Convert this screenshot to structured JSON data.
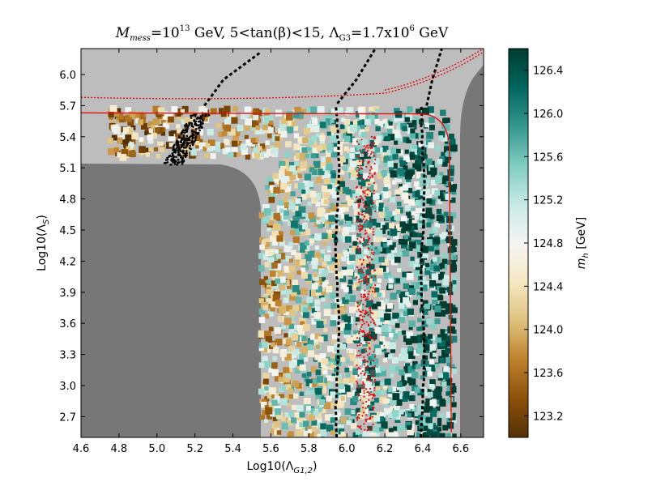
{
  "chart_data": {
    "type": "heatmap",
    "title": "M_mess=10^13 GeV, 5<tan(β)<15, Λ_G3=1.7x10^6 GeV",
    "title_parts": {
      "m": "M",
      "m_sub": "mess",
      "eq": "=10",
      "exp": "13",
      "gev1": " GeV, 5<tan(β)<15, Λ",
      "g3_sub": "G3",
      "eq2": "=1.7x10",
      "exp2": "6",
      "gev2": " GeV"
    },
    "xlabel": "Log10(Λ_G1,2)",
    "xlabel_parts": {
      "pre": "Log10(Λ",
      "sub": "G1,2",
      "post": ")"
    },
    "ylabel": "Log10(Λ_S)",
    "ylabel_parts": {
      "pre": "Log10(Λ",
      "sub": "S",
      "post": ")"
    },
    "xlim": [
      4.6,
      6.72
    ],
    "ylim": [
      2.5,
      6.25
    ],
    "xticks": [
      "4.6",
      "4.8",
      "5.0",
      "5.2",
      "5.4",
      "5.6",
      "5.8",
      "6.0",
      "6.2",
      "6.4",
      "6.6"
    ],
    "yticks": [
      "2.7",
      "3.0",
      "3.3",
      "3.6",
      "3.9",
      "4.2",
      "4.5",
      "4.8",
      "5.1",
      "5.4",
      "5.7",
      "6.0"
    ],
    "colorbar": {
      "label": "m_h [GeV]",
      "label_parts": {
        "pre": "m",
        "sub": "h",
        "post": " [GeV]"
      },
      "range": [
        123.0,
        126.6
      ],
      "ticks": [
        "123.2",
        "123.6",
        "124.0",
        "124.4",
        "124.8",
        "125.2",
        "125.6",
        "126.0",
        "126.4"
      ],
      "colormap": [
        "#543005",
        "#8c510a",
        "#bf812d",
        "#dfc27d",
        "#f6e8c3",
        "#f5f5f5",
        "#c7eae5",
        "#80cdc1",
        "#35978f",
        "#01665e",
        "#003c30"
      ]
    },
    "regions": {
      "excluded_dark_color": "#777777",
      "excluded_light_color": "#bdbdbd"
    },
    "contours": {
      "black_dashed_x": [
        5.95,
        6.4
      ],
      "red_lines": true
    }
  }
}
